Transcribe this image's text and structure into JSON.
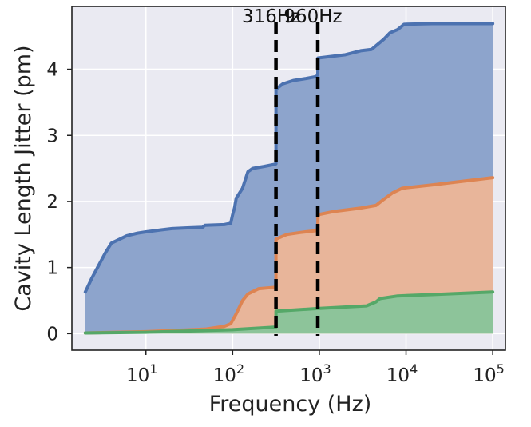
{
  "chart_data": {
    "type": "area",
    "title": "",
    "xlabel": "Frequency (Hz)",
    "ylabel": "Cavity Length Jitter (pm)",
    "xscale": "log",
    "xlim": [
      1.4,
      140000
    ],
    "ylim": [
      -0.25,
      4.95
    ],
    "x_ticks": [
      {
        "value": 10,
        "base": "10",
        "exp": "1"
      },
      {
        "value": 100,
        "base": "10",
        "exp": "2"
      },
      {
        "value": 1000,
        "base": "10",
        "exp": "3"
      },
      {
        "value": 10000,
        "base": "10",
        "exp": "4"
      },
      {
        "value": 100000,
        "base": "10",
        "exp": "5"
      }
    ],
    "y_ticks": [
      0,
      1,
      2,
      3,
      4
    ],
    "grid": true,
    "background": "#eaeaf2",
    "legend": "none",
    "series": [
      {
        "color": "#4c72b0",
        "fill": "#8da4cc",
        "points": [
          [
            2,
            0.63
          ],
          [
            2.4,
            0.85
          ],
          [
            2.9,
            1.05
          ],
          [
            3.4,
            1.22
          ],
          [
            4,
            1.37
          ],
          [
            5,
            1.43
          ],
          [
            6,
            1.48
          ],
          [
            8,
            1.52
          ],
          [
            10,
            1.54
          ],
          [
            15,
            1.57
          ],
          [
            20,
            1.59
          ],
          [
            30,
            1.6
          ],
          [
            45,
            1.61
          ],
          [
            48,
            1.64
          ],
          [
            80,
            1.65
          ],
          [
            95,
            1.67
          ],
          [
            100,
            1.8
          ],
          [
            105,
            1.9
          ],
          [
            110,
            2.05
          ],
          [
            130,
            2.2
          ],
          [
            150,
            2.45
          ],
          [
            170,
            2.5
          ],
          [
            230,
            2.53
          ],
          [
            300,
            2.56
          ],
          [
            316,
            2.57
          ],
          [
            316.1,
            3.7
          ],
          [
            380,
            3.78
          ],
          [
            500,
            3.83
          ],
          [
            700,
            3.86
          ],
          [
            930,
            3.89
          ],
          [
            960,
            3.93
          ],
          [
            965,
            4.17
          ],
          [
            1500,
            4.2
          ],
          [
            2000,
            4.22
          ],
          [
            3000,
            4.28
          ],
          [
            4000,
            4.3
          ],
          [
            5500,
            4.45
          ],
          [
            6500,
            4.55
          ],
          [
            8000,
            4.6
          ],
          [
            9500,
            4.68
          ],
          [
            20000,
            4.69
          ],
          [
            100000,
            4.69
          ]
        ]
      },
      {
        "color": "#dd8452",
        "fill": "#e8b59a",
        "points": [
          [
            2,
            0.01
          ],
          [
            10,
            0.03
          ],
          [
            50,
            0.07
          ],
          [
            80,
            0.11
          ],
          [
            95,
            0.15
          ],
          [
            110,
            0.3
          ],
          [
            130,
            0.5
          ],
          [
            150,
            0.6
          ],
          [
            200,
            0.68
          ],
          [
            300,
            0.7
          ],
          [
            316,
            0.71
          ],
          [
            316.1,
            1.43
          ],
          [
            420,
            1.5
          ],
          [
            600,
            1.53
          ],
          [
            930,
            1.56
          ],
          [
            960,
            1.6
          ],
          [
            965,
            1.8
          ],
          [
            1500,
            1.85
          ],
          [
            3000,
            1.9
          ],
          [
            4500,
            1.94
          ],
          [
            5500,
            2.03
          ],
          [
            7000,
            2.13
          ],
          [
            9000,
            2.2
          ],
          [
            20000,
            2.25
          ],
          [
            100000,
            2.36
          ]
        ]
      },
      {
        "color": "#55a868",
        "fill": "#8dc49a",
        "points": [
          [
            2,
            0.01
          ],
          [
            10,
            0.02
          ],
          [
            100,
            0.06
          ],
          [
            316,
            0.1
          ],
          [
            316.1,
            0.34
          ],
          [
            960,
            0.38
          ],
          [
            3500,
            0.42
          ],
          [
            4500,
            0.48
          ],
          [
            5000,
            0.53
          ],
          [
            8000,
            0.57
          ],
          [
            20000,
            0.59
          ],
          [
            100000,
            0.63
          ]
        ]
      }
    ],
    "annotations": [
      {
        "text": "316Hz",
        "x": 316,
        "style": "dashed-vertical"
      },
      {
        "text": "960Hz",
        "x": 960,
        "style": "dashed-vertical"
      }
    ]
  }
}
